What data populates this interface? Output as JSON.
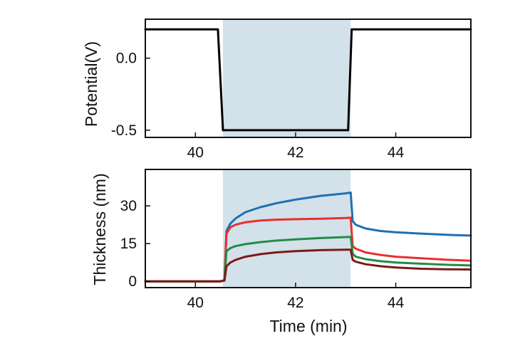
{
  "chart_data": [
    {
      "id": "potential",
      "type": "line",
      "title": "",
      "xlabel": "",
      "ylabel": "Potential(V)",
      "xlim": [
        39.0,
        45.5
      ],
      "ylim": [
        -0.55,
        0.27
      ],
      "xticks": [
        40,
        42,
        44
      ],
      "xtick_labels": [
        "40",
        "42",
        "44"
      ],
      "yticks": [
        0.0,
        -0.5
      ],
      "ytick_labels": [
        "0.0",
        "-0.5"
      ],
      "grid": false,
      "legend": "none",
      "highlight_span": {
        "x": [
          40.55,
          43.1
        ],
        "color": "#d3e1ea"
      },
      "series": [
        {
          "color": "#000000",
          "x": [
            39.0,
            40.45,
            40.55,
            43.05,
            43.12,
            45.5
          ],
          "y": [
            0.2,
            0.2,
            -0.5,
            -0.5,
            0.2,
            0.2
          ]
        }
      ]
    },
    {
      "id": "thickness",
      "type": "line",
      "title": "",
      "xlabel": "Time (min)",
      "ylabel": "Thickness (nm)",
      "xlim": [
        39.0,
        45.5
      ],
      "ylim": [
        -2.5,
        44.5
      ],
      "xticks": [
        40,
        42,
        44
      ],
      "xtick_labels": [
        "40",
        "42",
        "44"
      ],
      "yticks": [
        0,
        15,
        30
      ],
      "ytick_labels": [
        "0",
        "15",
        "30"
      ],
      "grid": false,
      "legend": "none",
      "highlight_span": {
        "x": [
          40.55,
          43.1
        ],
        "color": "#d3e1ea"
      },
      "series": [
        {
          "color": "#1f6fb4",
          "x": [
            39.0,
            40.5,
            40.58,
            40.62,
            40.7,
            40.8,
            41.0,
            41.3,
            41.6,
            42.0,
            42.5,
            43.0,
            43.1,
            43.14,
            43.2,
            43.4,
            43.7,
            44.0,
            44.5,
            45.0,
            45.5
          ],
          "y": [
            0.0,
            0.0,
            0.5,
            20.0,
            23.0,
            25.0,
            27.5,
            29.5,
            31.0,
            32.5,
            34.0,
            35.0,
            35.3,
            24.0,
            22.5,
            21.0,
            20.0,
            19.5,
            19.0,
            18.5,
            18.2
          ]
        },
        {
          "color": "#e8302e",
          "x": [
            39.0,
            40.5,
            40.58,
            40.62,
            40.7,
            40.8,
            41.0,
            41.3,
            41.6,
            42.0,
            42.5,
            43.0,
            43.1,
            43.14,
            43.2,
            43.4,
            43.7,
            44.0,
            44.5,
            45.0,
            45.5
          ],
          "y": [
            0.0,
            0.0,
            0.5,
            19.0,
            21.5,
            22.5,
            23.5,
            24.2,
            24.5,
            24.7,
            24.9,
            25.2,
            25.3,
            14.0,
            13.0,
            11.5,
            10.5,
            9.8,
            9.2,
            8.6,
            8.2
          ]
        },
        {
          "color": "#238b45",
          "x": [
            39.0,
            40.5,
            40.58,
            40.62,
            40.7,
            40.8,
            41.0,
            41.3,
            41.6,
            42.0,
            42.5,
            43.0,
            43.1,
            43.14,
            43.2,
            43.4,
            43.7,
            44.0,
            44.5,
            45.0,
            45.5
          ],
          "y": [
            0.0,
            0.0,
            0.5,
            12.0,
            13.2,
            14.0,
            14.8,
            15.6,
            16.2,
            16.7,
            17.2,
            17.6,
            17.7,
            11.0,
            9.8,
            8.8,
            8.0,
            7.5,
            7.0,
            6.6,
            6.3
          ]
        },
        {
          "color": "#7b1a1a",
          "x": [
            39.0,
            40.5,
            40.58,
            40.62,
            40.7,
            40.8,
            41.0,
            41.3,
            41.6,
            42.0,
            42.5,
            43.0,
            43.1,
            43.14,
            43.2,
            43.4,
            43.7,
            44.0,
            44.5,
            45.0,
            45.5
          ],
          "y": [
            0.0,
            0.0,
            0.3,
            6.0,
            7.5,
            8.5,
            9.8,
            10.8,
            11.5,
            12.0,
            12.4,
            12.6,
            12.6,
            8.5,
            7.8,
            6.8,
            6.0,
            5.5,
            5.0,
            4.8,
            4.7
          ]
        }
      ]
    }
  ]
}
